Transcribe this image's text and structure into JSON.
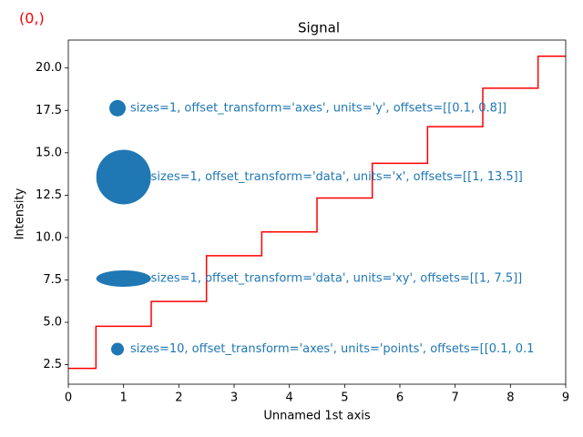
{
  "corner_label": "(0,)",
  "chart_data": {
    "type": "step",
    "title": "Signal",
    "xlabel": "Unnamed 1st axis",
    "ylabel": "Intensity",
    "x": [
      0,
      1,
      2,
      3,
      4,
      5,
      6,
      7,
      8,
      9
    ],
    "series": [
      {
        "color": "#ff0000",
        "values": [
          2.28,
          4.77,
          6.23,
          8.93,
          10.33,
          12.33,
          14.38,
          16.54,
          18.81,
          20.7
        ]
      }
    ],
    "xlim": [
      0,
      9
    ],
    "xticks": [
      0,
      1,
      2,
      3,
      4,
      5,
      6,
      7,
      8,
      9
    ],
    "ylim": [
      1.35,
      21.65
    ],
    "yticks": [
      2.5,
      {
        "value": 5,
        "label": "5.0"
      },
      7.5,
      {
        "value": 10,
        "label": "10.0"
      },
      12.5,
      {
        "value": 15,
        "label": "15.0"
      },
      17.5,
      {
        "value": 20,
        "label": "20.0"
      }
    ],
    "marker_color": "#1f77b4",
    "markers": [
      {
        "x": 0.89,
        "y": 17.63,
        "label": "sizes=1, offset_transform='axes', units='y', offsets=[[0.1, 0.8]]"
      },
      {
        "x": 1.0,
        "y": 13.57,
        "label": "sizes=1, offset_transform='data', units='x', offsets=[[1, 13.5]]"
      },
      {
        "x": 1.0,
        "y": 7.58,
        "label": "sizes=1, offset_transform='data', units='xy', offsets=[[1, 7.5]]"
      },
      {
        "x": 0.89,
        "y": 3.42,
        "label": "sizes=10, offset_transform='axes', units='points', offsets=[[0.1, 0.1"
      }
    ]
  }
}
